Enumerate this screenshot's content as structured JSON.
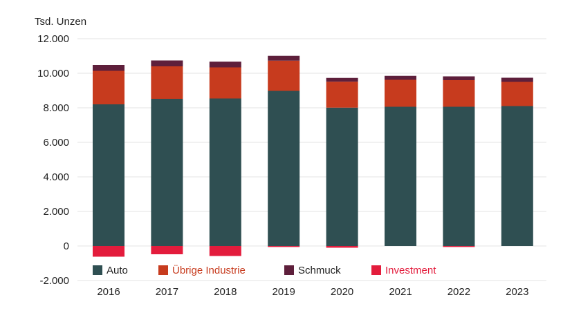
{
  "chart_data": {
    "type": "bar",
    "stacked": true,
    "ylabel": "Tsd. Unzen",
    "ylim": [
      -2000,
      12000
    ],
    "yticks": [
      -2000,
      0,
      2000,
      4000,
      6000,
      8000,
      10000,
      12000
    ],
    "ytick_labels": [
      "-2.000",
      "0",
      "2.000",
      "4.000",
      "6.000",
      "8.000",
      "10.000",
      "12.000"
    ],
    "grid": true,
    "legend_position": "bottom-left, inside plot",
    "categories": [
      "2016",
      "2017",
      "2018",
      "2019",
      "2020",
      "2021",
      "2022",
      "2023"
    ],
    "series": [
      {
        "name": "Auto",
        "color": "#2f4f52",
        "values": [
          8200,
          8520,
          8540,
          8980,
          8010,
          8060,
          8060,
          8100
        ]
      },
      {
        "name": "Übrige Industrie",
        "color": "#c73b1e",
        "values": [
          1940,
          1880,
          1800,
          1750,
          1500,
          1560,
          1540,
          1400
        ]
      },
      {
        "name": "Schmuck",
        "color": "#5e1f3b",
        "values": [
          340,
          340,
          330,
          280,
          220,
          230,
          220,
          240
        ]
      },
      {
        "name": "Investment",
        "color": "#e31c3c",
        "values": [
          -620,
          -480,
          -580,
          -60,
          -100,
          0,
          -60,
          0
        ]
      }
    ]
  }
}
